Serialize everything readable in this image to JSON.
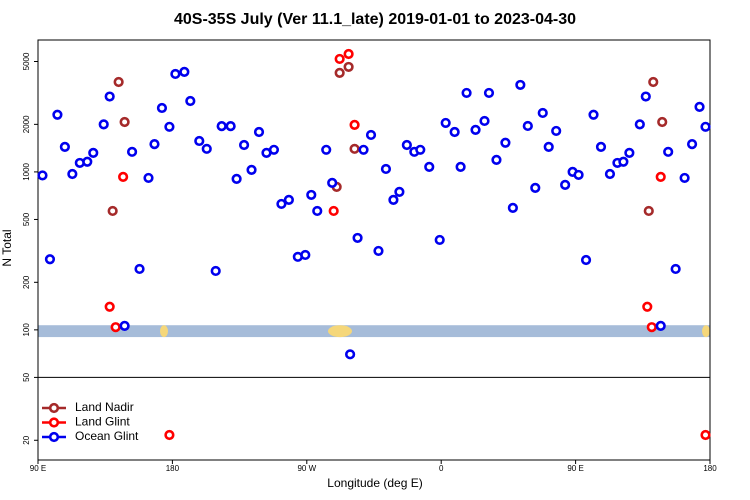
{
  "chart_data": {
    "type": "scatter",
    "title": "40S-35S July (Ver 11.1_late)   2019-01-01 to 2023-04-30",
    "xlabel": "Longitude (deg E)",
    "ylabel": "N Total",
    "xlim": [
      90,
      540
    ],
    "xticks": [
      {
        "value": 90,
        "label": "90 E"
      },
      180,
      {
        "value": 270,
        "label": "90 W"
      },
      {
        "value": 360,
        "label": "0"
      },
      {
        "value": 450,
        "label": "90 E"
      },
      {
        "value": 540,
        "label": "180"
      }
    ],
    "ylim": [
      15,
      6840
    ],
    "yticks": [
      20,
      50,
      100,
      200,
      500,
      1000,
      2000,
      5000
    ],
    "log_y": true,
    "hline": 50,
    "shaded_band": {
      "range": [
        90,
        107
      ],
      "color": "#a6bcd9"
    },
    "legend": "lower left",
    "series": [
      {
        "name": "Land Nadir",
        "color": "#a52a2a",
        "x": [
          140,
          144,
          148,
          290,
          292,
          298,
          302,
          499,
          502,
          508
        ],
        "values": [
          566,
          3710,
          2070,
          804,
          4234,
          4620,
          1400,
          566,
          3710,
          2070
        ]
      },
      {
        "name": "Land Glint",
        "color": "#ff0000",
        "x": [
          138,
          142,
          147,
          178,
          288,
          292,
          298,
          302,
          498,
          501,
          507,
          537
        ],
        "values": [
          140,
          104,
          930,
          21.6,
          566,
          5190,
          5580,
          1985,
          140,
          104,
          930,
          21.6
        ]
      },
      {
        "name": "Ocean Glint",
        "color": "#0000ee",
        "x": [
          93,
          98,
          103,
          108,
          113,
          118,
          123,
          127,
          134,
          138,
          148,
          153,
          158,
          164,
          168,
          173,
          178,
          182,
          188,
          192,
          198,
          203,
          209,
          213,
          219,
          223,
          228,
          233,
          238,
          243,
          248,
          253,
          258,
          264,
          269,
          273,
          277,
          283,
          287,
          299,
          304,
          308,
          313,
          318,
          323,
          328,
          332,
          337,
          342,
          346,
          352,
          359,
          363,
          369,
          373,
          377,
          383,
          389,
          392,
          397,
          403,
          408,
          413,
          418,
          423,
          428,
          432,
          437,
          443,
          448,
          452,
          457,
          462,
          467,
          473,
          478,
          482,
          486,
          493,
          497,
          507,
          512,
          517,
          523,
          528,
          533,
          537
        ],
        "values": [
          950,
          280,
          2300,
          1440,
          970,
          1140,
          1160,
          1320,
          2000,
          3000,
          106,
          1340,
          243,
          916,
          1500,
          2540,
          1930,
          4170,
          4300,
          2810,
          1570,
          1400,
          236,
          1950,
          1950,
          903,
          1480,
          1030,
          1790,
          1320,
          1380,
          627,
          665,
          290,
          298,
          715,
          566,
          1380,
          852,
          70,
          382,
          1380,
          1714,
          316,
          1044,
          665,
          747,
          1480,
          1340,
          1380,
          1076,
          371,
          2042,
          1790,
          1076,
          3162,
          1845,
          2102,
          3162,
          1191,
          1530,
          592,
          3554,
          1954,
          792,
          2362,
          1440,
          1817,
          828,
          1000,
          957,
          277,
          2300,
          1440,
          970,
          1140,
          1160,
          1320,
          2000,
          3000,
          106,
          1340,
          243,
          916,
          1500,
          2580,
          1930
        ]
      }
    ]
  }
}
